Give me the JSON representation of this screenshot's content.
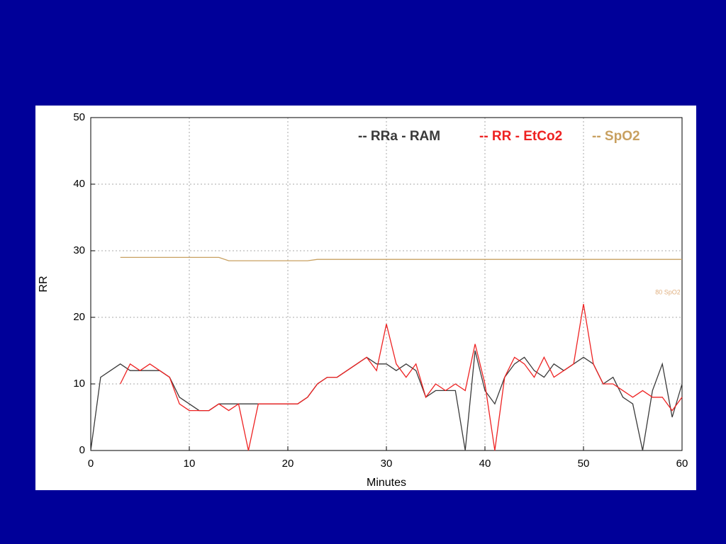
{
  "chart_data": {
    "type": "line",
    "xlabel": "Minutes",
    "ylabel": "RR",
    "x": [
      0,
      1,
      2,
      3,
      4,
      5,
      6,
      7,
      8,
      9,
      10,
      11,
      12,
      13,
      14,
      15,
      16,
      17,
      18,
      19,
      20,
      21,
      22,
      23,
      24,
      25,
      26,
      27,
      28,
      29,
      30,
      31,
      32,
      33,
      34,
      35,
      36,
      37,
      38,
      39,
      40,
      41,
      42,
      43,
      44,
      45,
      46,
      47,
      48,
      49,
      50,
      51,
      52,
      53,
      54,
      55,
      56,
      57,
      58,
      59,
      60
    ],
    "series": [
      {
        "name": "-- RRa - RAM",
        "color": "#3a3a3a",
        "values": [
          0,
          11,
          12,
          13,
          12,
          12,
          12,
          12,
          11,
          8,
          7,
          6,
          6,
          7,
          7,
          7,
          7,
          7,
          7,
          7,
          7,
          7,
          8,
          10,
          11,
          11,
          12,
          13,
          14,
          13,
          13,
          12,
          13,
          12,
          8,
          9,
          9,
          9,
          0,
          15,
          9,
          7,
          11,
          13,
          14,
          12,
          11,
          13,
          12,
          13,
          14,
          13,
          10,
          11,
          8,
          7,
          0,
          9,
          13,
          5,
          10
        ]
      },
      {
        "name": "-- RR - EtCo2",
        "color": "#ee2222",
        "values": [
          null,
          null,
          null,
          10,
          13,
          12,
          13,
          12,
          11,
          7,
          6,
          6,
          6,
          7,
          6,
          7,
          0,
          7,
          7,
          7,
          7,
          7,
          8,
          10,
          11,
          11,
          12,
          13,
          14,
          12,
          19,
          13,
          11,
          13,
          8,
          10,
          9,
          10,
          9,
          16,
          10,
          0,
          11,
          14,
          13,
          11,
          14,
          11,
          12,
          13,
          22,
          13,
          10,
          10,
          9,
          8,
          9,
          8,
          8,
          6,
          8
        ]
      },
      {
        "name": "-- SpO2",
        "color": "#c8a060",
        "values": [
          null,
          null,
          null,
          29,
          29,
          29,
          29,
          29,
          29,
          29,
          29,
          29,
          29,
          29,
          28.5,
          28.5,
          28.5,
          28.5,
          28.5,
          28.5,
          28.5,
          28.5,
          28.5,
          28.7,
          28.7,
          28.7,
          28.7,
          28.7,
          28.7,
          28.7,
          28.7,
          28.7,
          28.7,
          28.7,
          28.7,
          28.7,
          28.7,
          28.7,
          28.7,
          28.7,
          28.7,
          28.7,
          28.7,
          28.7,
          28.7,
          28.7,
          28.7,
          28.7,
          28.7,
          28.7,
          28.7,
          28.7,
          28.7,
          28.7,
          28.7,
          28.7,
          28.7,
          28.7,
          28.7,
          28.7,
          28.7
        ]
      }
    ],
    "annotations": [
      "80 SpO2"
    ],
    "xlim": [
      0,
      60
    ],
    "xticks": [
      0,
      10,
      20,
      30,
      40,
      50,
      60
    ],
    "ylim": [
      0,
      50
    ],
    "yticks": [
      0,
      10,
      20,
      30,
      40,
      50
    ],
    "grid": true
  }
}
